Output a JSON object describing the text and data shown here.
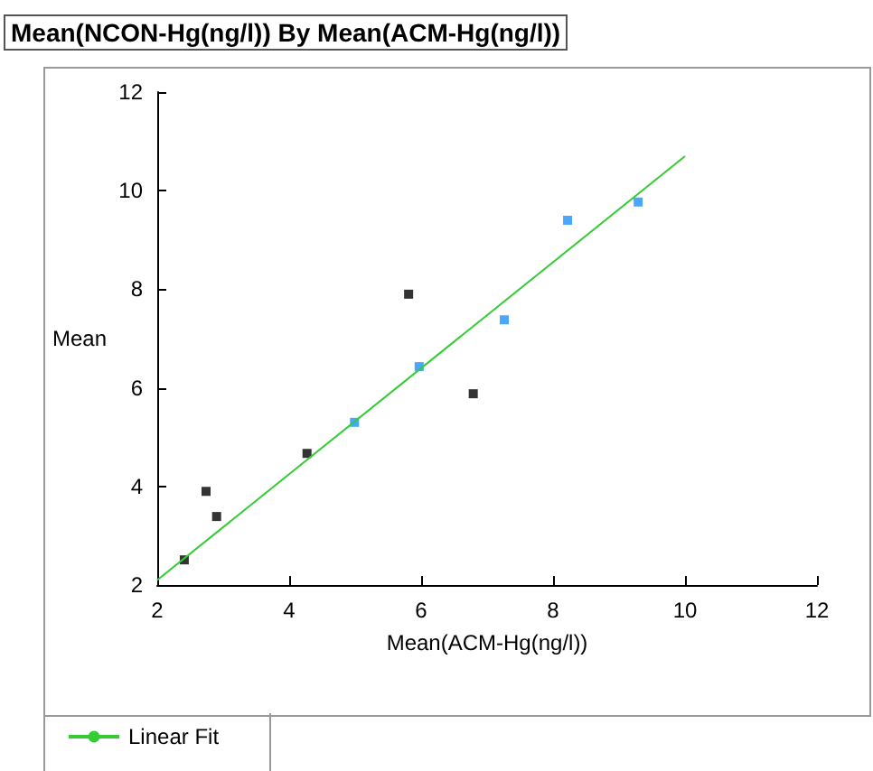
{
  "chart_data": {
    "type": "scatter",
    "title": "Mean(NCON-Hg(ng/l)) By Mean(ACM-Hg(ng/l))",
    "xlabel": "Mean(ACM-Hg(ng/l))",
    "ylabel": "Mean",
    "xlim": [
      2,
      12
    ],
    "xticks": [
      2,
      4,
      6,
      8,
      10,
      12
    ],
    "ylim": [
      2,
      12
    ],
    "yticks": [
      2,
      4,
      6,
      8,
      10,
      12
    ],
    "grid": false,
    "legend": "bottom left",
    "marker": "square",
    "series": [
      {
        "color": "#000000",
        "x": [
          2.41,
          2.74,
          2.9,
          4.27,
          5.81,
          6.79
        ],
        "values": [
          2.51,
          3.9,
          3.39,
          4.67,
          7.9,
          5.88
        ]
      },
      {
        "color": "#1e90ff",
        "x": [
          4.99,
          5.97,
          7.26,
          8.22,
          9.29
        ],
        "values": [
          5.3,
          6.43,
          7.38,
          9.4,
          9.77
        ]
      },
      {
        "type": "line",
        "name": "Linear Fit",
        "color": "#33cc33",
        "marker": "none",
        "x": [
          2,
          10
        ],
        "values": [
          2.1,
          10.7
        ]
      }
    ]
  }
}
